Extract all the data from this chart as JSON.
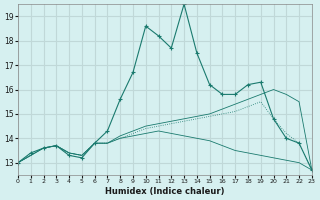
{
  "xlabel": "Humidex (Indice chaleur)",
  "ylabel": "",
  "background_color": "#d6f0f0",
  "grid_color": "#c0d8d8",
  "line_color": "#1a7a6e",
  "xlim": [
    0,
    23
  ],
  "ylim": [
    12.5,
    19.5
  ],
  "yticks": [
    13,
    14,
    15,
    16,
    17,
    18,
    19
  ],
  "xticks": [
    0,
    1,
    2,
    3,
    4,
    5,
    6,
    7,
    8,
    9,
    10,
    11,
    12,
    13,
    14,
    15,
    16,
    17,
    18,
    19,
    20,
    21,
    22,
    23
  ],
  "series": [
    [
      0,
      13.0
    ],
    [
      1,
      13.4
    ],
    [
      2,
      13.6
    ],
    [
      3,
      13.7
    ],
    [
      4,
      13.3
    ],
    [
      5,
      13.2
    ],
    [
      6,
      13.8
    ],
    [
      7,
      14.3
    ],
    [
      8,
      15.6
    ],
    [
      9,
      16.7
    ],
    [
      10,
      18.6
    ],
    [
      11,
      18.2
    ],
    [
      12,
      17.7
    ],
    [
      13,
      19.5
    ],
    [
      14,
      17.5
    ],
    [
      15,
      16.2
    ],
    [
      16,
      15.8
    ],
    [
      17,
      15.8
    ],
    [
      18,
      16.2
    ],
    [
      19,
      16.3
    ],
    [
      20,
      14.8
    ],
    [
      21,
      14.0
    ],
    [
      22,
      13.8
    ],
    [
      23,
      12.7
    ]
  ],
  "series2": [
    [
      0,
      13.0
    ],
    [
      2,
      13.6
    ],
    [
      3,
      13.7
    ],
    [
      4,
      13.4
    ],
    [
      5,
      13.3
    ],
    [
      6,
      13.8
    ],
    [
      7,
      13.8
    ],
    [
      8,
      14.0
    ],
    [
      9,
      14.2
    ],
    [
      10,
      14.4
    ],
    [
      11,
      14.5
    ],
    [
      12,
      14.6
    ],
    [
      13,
      14.7
    ],
    [
      14,
      14.8
    ],
    [
      15,
      14.9
    ],
    [
      16,
      15.0
    ],
    [
      17,
      15.1
    ],
    [
      18,
      15.3
    ],
    [
      19,
      15.5
    ],
    [
      20,
      14.8
    ],
    [
      21,
      14.2
    ],
    [
      22,
      13.8
    ],
    [
      23,
      12.7
    ]
  ],
  "series3": [
    [
      0,
      13.0
    ],
    [
      2,
      13.6
    ],
    [
      3,
      13.7
    ],
    [
      4,
      13.4
    ],
    [
      5,
      13.3
    ],
    [
      6,
      13.8
    ],
    [
      7,
      13.8
    ],
    [
      8,
      14.1
    ],
    [
      9,
      14.3
    ],
    [
      10,
      14.5
    ],
    [
      11,
      14.6
    ],
    [
      12,
      14.7
    ],
    [
      13,
      14.8
    ],
    [
      14,
      14.9
    ],
    [
      15,
      15.0
    ],
    [
      16,
      15.2
    ],
    [
      17,
      15.4
    ],
    [
      18,
      15.6
    ],
    [
      19,
      15.8
    ],
    [
      20,
      16.0
    ],
    [
      21,
      15.8
    ],
    [
      22,
      15.5
    ],
    [
      23,
      12.7
    ]
  ],
  "series4": [
    [
      0,
      13.0
    ],
    [
      2,
      13.6
    ],
    [
      3,
      13.7
    ],
    [
      4,
      13.4
    ],
    [
      5,
      13.3
    ],
    [
      6,
      13.8
    ],
    [
      7,
      13.8
    ],
    [
      8,
      14.0
    ],
    [
      9,
      14.1
    ],
    [
      10,
      14.2
    ],
    [
      11,
      14.3
    ],
    [
      12,
      14.2
    ],
    [
      13,
      14.1
    ],
    [
      14,
      14.0
    ],
    [
      15,
      13.9
    ],
    [
      16,
      13.7
    ],
    [
      17,
      13.5
    ],
    [
      18,
      13.4
    ],
    [
      19,
      13.3
    ],
    [
      20,
      13.2
    ],
    [
      21,
      13.1
    ],
    [
      22,
      13.0
    ],
    [
      23,
      12.7
    ]
  ]
}
